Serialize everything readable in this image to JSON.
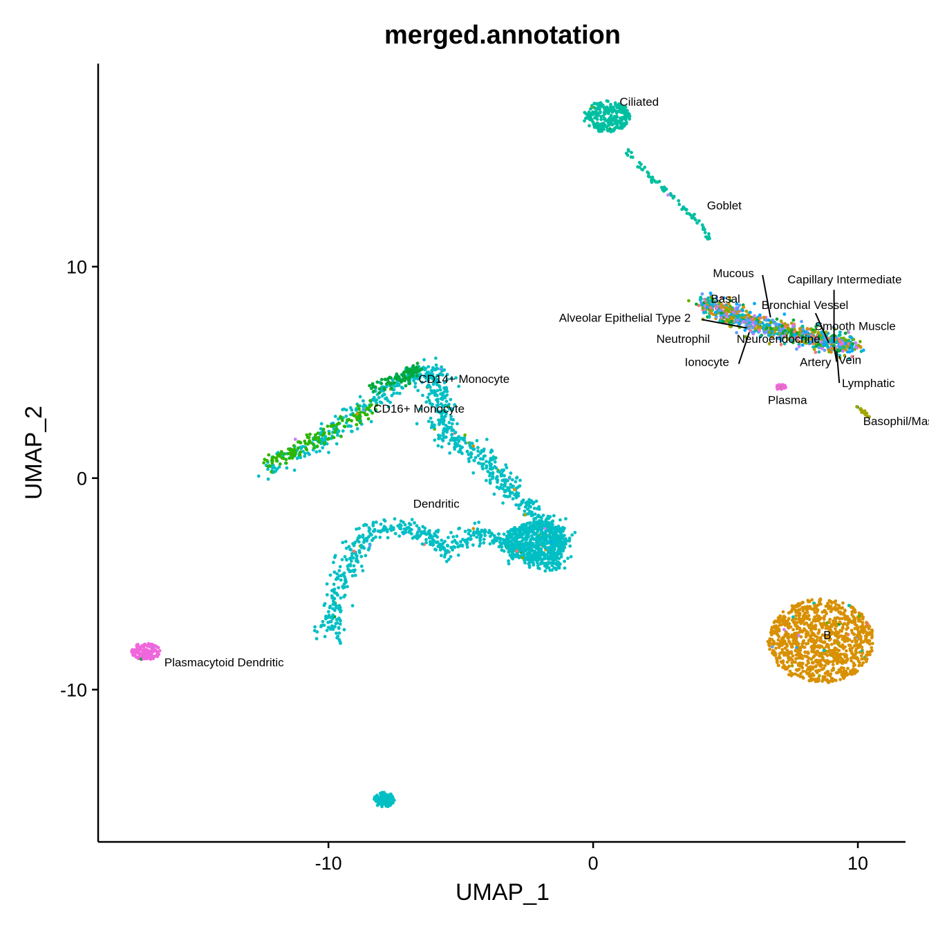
{
  "chart_data": {
    "type": "scatter",
    "title": "merged.annotation",
    "xlabel": "UMAP_1",
    "ylabel": "UMAP_2",
    "xlim": [
      -18.7,
      11.8
    ],
    "ylim": [
      -17.2,
      19.6
    ],
    "x_ticks": [
      {
        "value": -10,
        "label": "-10"
      },
      {
        "value": 0,
        "label": "0"
      },
      {
        "value": 10,
        "label": "10"
      }
    ],
    "y_ticks": [
      {
        "value": 10,
        "label": "10"
      },
      {
        "value": 0,
        "label": "0"
      },
      {
        "value": -10,
        "label": "-10"
      }
    ],
    "grid": false,
    "legend": "none",
    "colors": {
      "teal": "#00BFA0",
      "cyan": "#00B8C8",
      "orange": "#D89000",
      "olive": "#A3A500",
      "green": "#00A83A",
      "lime": "#6BB100",
      "pink": "#F066DC",
      "blue": "#619CFF",
      "purple": "#C77CFF",
      "red": "#F8766D",
      "skyblue": "#00A9FF"
    },
    "clusters": [
      {
        "name": "Dendritic",
        "color": "#00BFC4",
        "shape": "path",
        "path": [
          [
            -12.2,
            0.5
          ],
          [
            -10.5,
            1.6
          ],
          [
            -9.0,
            3.0
          ],
          [
            -7.2,
            4.7
          ],
          [
            -6.0,
            5.1
          ],
          [
            -5.8,
            3.6
          ],
          [
            -5.6,
            2.0
          ],
          [
            -4.2,
            1.0
          ],
          [
            -3.2,
            -0.5
          ],
          [
            -2.2,
            -1.8
          ],
          [
            -1.2,
            -2.8
          ],
          [
            -1.5,
            -4.0
          ],
          [
            -2.9,
            -3.5
          ],
          [
            -4.2,
            -2.5
          ],
          [
            -5.6,
            -3.4
          ],
          [
            -6.8,
            -2.3
          ],
          [
            -8.5,
            -2.5
          ],
          [
            -9.2,
            -4.0
          ],
          [
            -9.8,
            -6.0
          ],
          [
            -10.0,
            -7.5
          ]
        ],
        "n": 1400,
        "spread": 0.55,
        "label": {
          "text": "Dendritic",
          "x": -6.8,
          "y": -1.4
        }
      },
      {
        "name": "Dendritic-blob",
        "color": "#00BFC4",
        "shape": "ellipse",
        "cx": -2.2,
        "cy": -3.0,
        "rx": 1.2,
        "ry": 0.9,
        "n": 500
      },
      {
        "name": "Dendritic-isolated",
        "color": "#00BFC4",
        "shape": "ellipse",
        "cx": -7.9,
        "cy": -15.2,
        "rx": 0.4,
        "ry": 0.35,
        "n": 130
      },
      {
        "name": "CD14+ Monocyte",
        "color": "#00A83A",
        "shape": "path",
        "path": [
          [
            -8.4,
            4.3
          ],
          [
            -7.3,
            4.7
          ],
          [
            -6.6,
            5.2
          ]
        ],
        "n": 90,
        "spread": 0.3,
        "label": {
          "text": "CD14+ Monocyte",
          "x": -6.6,
          "y": 4.5
        }
      },
      {
        "name": "CD16+ Monocyte",
        "color": "#2DB600",
        "shape": "path",
        "path": [
          [
            -12.3,
            0.6
          ],
          [
            -11.0,
            1.5
          ],
          [
            -9.5,
            2.5
          ],
          [
            -8.2,
            3.5
          ]
        ],
        "n": 140,
        "spread": 0.35,
        "label": {
          "text": "CD16+ Monocyte",
          "x": -8.3,
          "y": 3.1
        }
      },
      {
        "name": "Plasmacytoid Dendritic",
        "color": "#F066DC",
        "shape": "ellipse",
        "cx": -16.9,
        "cy": -8.2,
        "rx": 0.55,
        "ry": 0.4,
        "n": 130,
        "label": {
          "text": "Plasmacytoid Dendritic",
          "x": -16.2,
          "y": -8.9
        }
      },
      {
        "name": "Ciliated",
        "color": "#00BFA0",
        "shape": "ellipse",
        "cx": 0.5,
        "cy": 17.1,
        "rx": 0.9,
        "ry": 0.75,
        "n": 260,
        "label": {
          "text": "Ciliated",
          "x": 1.0,
          "y": 17.6
        }
      },
      {
        "name": "Goblet",
        "color": "#00BFA0",
        "shape": "path",
        "path": [
          [
            1.2,
            15.6
          ],
          [
            2.2,
            14.2
          ],
          [
            3.2,
            13.0
          ],
          [
            4.1,
            12.0
          ],
          [
            4.4,
            11.2
          ]
        ],
        "n": 70,
        "spread": 0.12,
        "label": {
          "text": "Goblet",
          "x": 4.3,
          "y": 12.7
        }
      },
      {
        "name": "B",
        "color": "#D89000",
        "shape": "ellipse",
        "cx": 8.6,
        "cy": -7.7,
        "rx": 2.0,
        "ry": 2.0,
        "n": 1000,
        "label": {
          "text": "B",
          "x": 8.7,
          "y": -7.6
        }
      },
      {
        "name": "Epithelial-mix",
        "color": "#A3A500",
        "shape": "path",
        "path": [
          [
            4.2,
            8.3
          ],
          [
            5.5,
            7.6
          ],
          [
            7.0,
            7.0
          ],
          [
            8.5,
            6.6
          ],
          [
            9.8,
            6.3
          ]
        ],
        "n": 900,
        "spread": 0.55,
        "mixed": true
      },
      {
        "name": "Plasma",
        "color": "#F066DC",
        "shape": "ellipse",
        "cx": 7.1,
        "cy": 4.3,
        "rx": 0.18,
        "ry": 0.15,
        "n": 25,
        "label": {
          "text": "Plasma",
          "x": 6.6,
          "y": 3.5
        }
      },
      {
        "name": "Basophil/Mast",
        "color": "#A3A500",
        "shape": "path",
        "path": [
          [
            10.0,
            3.4
          ],
          [
            10.4,
            2.9
          ]
        ],
        "n": 20,
        "spread": 0.08,
        "label": {
          "text": "Basophil/Mast",
          "x": 10.2,
          "y": 2.5
        }
      }
    ],
    "leader_labels": [
      {
        "text": "Mucous",
        "x": 5.3,
        "y": 9.5,
        "line": [
          [
            6.4,
            9.6
          ],
          [
            6.7,
            7.6
          ]
        ]
      },
      {
        "text": "Capillary Intermediate",
        "x": 9.5,
        "y": 9.2,
        "line": [
          [
            9.1,
            8.9
          ],
          [
            9.1,
            6.4
          ]
        ]
      },
      {
        "text": "Basal",
        "x": 5.0,
        "y": 8.3,
        "line": null
      },
      {
        "text": "Bronchial Vessel",
        "x": 8.0,
        "y": 8.0,
        "line": [
          [
            8.4,
            7.8
          ],
          [
            8.9,
            6.4
          ]
        ]
      },
      {
        "text": "Alveolar Epithelial Type 2",
        "x": 1.2,
        "y": 7.4,
        "line": [
          [
            4.1,
            7.5
          ],
          [
            5.8,
            7.1
          ]
        ]
      },
      {
        "text": "Smooth Muscle",
        "x": 9.9,
        "y": 7.0,
        "line": null
      },
      {
        "text": "Neutrophil",
        "x": 3.4,
        "y": 6.4,
        "line": null
      },
      {
        "text": "Neuroendocrine",
        "x": 7.0,
        "y": 6.4,
        "line": null
      },
      {
        "text": "Ionocyte",
        "x": 4.3,
        "y": 5.3,
        "line": [
          [
            5.5,
            5.4
          ],
          [
            5.9,
            6.9
          ]
        ]
      },
      {
        "text": "Artery",
        "x": 8.4,
        "y": 5.3,
        "line": null
      },
      {
        "text": "Vein",
        "x": 9.7,
        "y": 5.4,
        "line": [
          [
            9.1,
            6.2
          ],
          [
            9.2,
            5.5
          ]
        ]
      },
      {
        "text": "Lymphatic",
        "x": 10.4,
        "y": 4.3,
        "line": [
          [
            9.2,
            6.0
          ],
          [
            9.3,
            4.5
          ]
        ]
      }
    ]
  }
}
